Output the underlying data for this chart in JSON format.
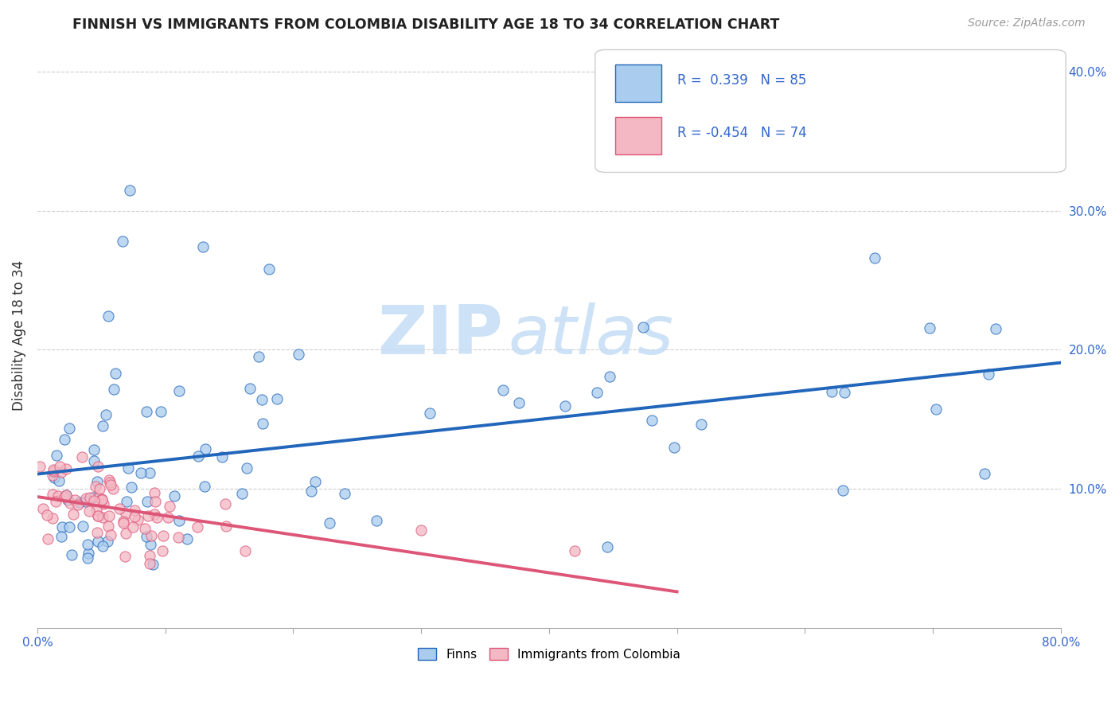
{
  "title": "FINNISH VS IMMIGRANTS FROM COLOMBIA DISABILITY AGE 18 TO 34 CORRELATION CHART",
  "source": "Source: ZipAtlas.com",
  "ylabel": "Disability Age 18 to 34",
  "xlim": [
    0.0,
    0.8
  ],
  "ylim": [
    0.0,
    0.42
  ],
  "xticks": [
    0.0,
    0.1,
    0.2,
    0.3,
    0.4,
    0.5,
    0.6,
    0.7,
    0.8
  ],
  "ytick_positions": [
    0.1,
    0.2,
    0.3,
    0.4
  ],
  "ytick_labels": [
    "10.0%",
    "20.0%",
    "30.0%",
    "40.0%"
  ],
  "r_finns": 0.339,
  "n_finns": 85,
  "r_colombia": -0.454,
  "n_colombia": 74,
  "blue_color": "#aaccee",
  "blue_line_color": "#2266bb",
  "pink_color": "#f4b8c4",
  "pink_line_color": "#dd5577",
  "watermark_zip": "ZIP",
  "watermark_atlas": "atlas",
  "legend_label_1": "Finns",
  "legend_label_2": "Immigrants from Colombia",
  "background_color": "#ffffff",
  "grid_color": "#cccccc"
}
